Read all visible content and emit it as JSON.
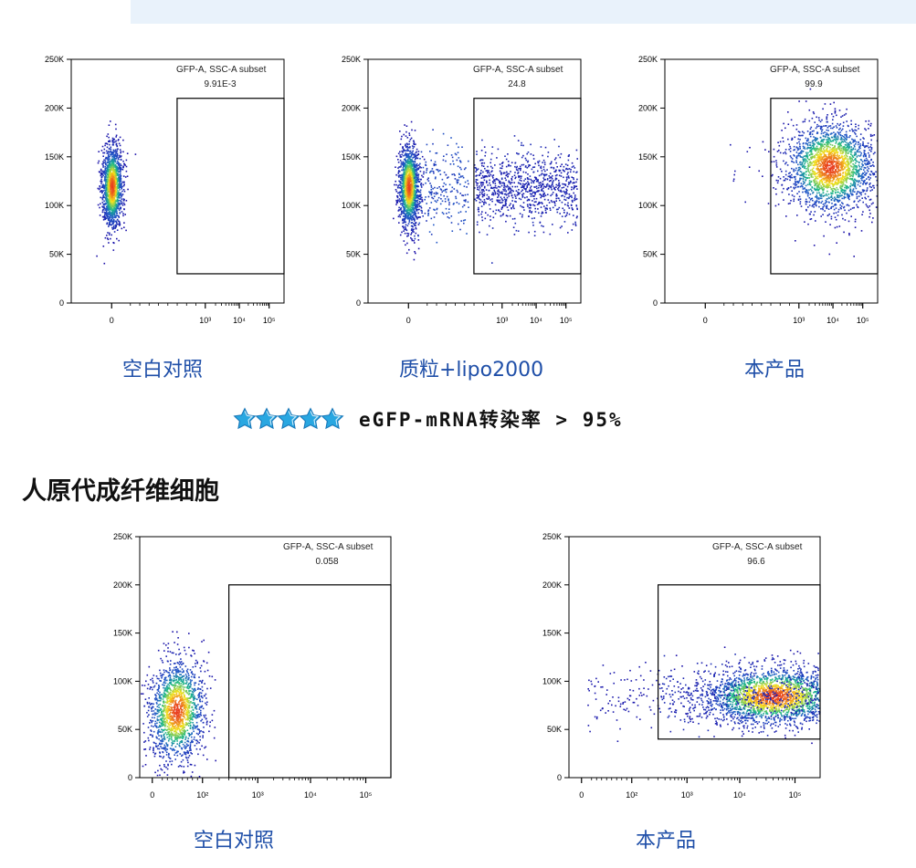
{
  "section_title": "人原代成纤维细胞",
  "rating": {
    "stars": 5,
    "icon": "star-icon",
    "star_color": "#29a7e1",
    "text": "eGFP-mRNA转染率 > 95%"
  },
  "colors": {
    "label_blue": "#1f4fa8",
    "banner": "#e9f2fb",
    "density_low": "#1a0ea8",
    "density_mid": "#19b88a",
    "density_high": "#f5e21a",
    "density_peak": "#e8391f"
  },
  "chart_data": [
    {
      "type": "scatter",
      "sample_label": "空白对照",
      "gate_name": "GFP-A, SSC-A subset",
      "gate_value": "9.91E-3",
      "x_axis": {
        "scale": "biexponential",
        "ticks": [
          "0",
          "10³",
          "10⁴",
          "10⁵"
        ]
      },
      "y_axis": {
        "ticks": [
          "0",
          "50K",
          "100K",
          "150K",
          "200K",
          "250K"
        ],
        "ylim": [
          0,
          250000
        ]
      },
      "gate": {
        "x_min": 500,
        "x_max": 262144,
        "y_min": 30000,
        "y_max": 210000
      },
      "population": {
        "center_x": 0,
        "center_y": 120000,
        "spread_y": 50000
      },
      "grid": false
    },
    {
      "type": "scatter",
      "sample_label": "质粒+lipo2000",
      "gate_name": "GFP-A, SSC-A subset",
      "gate_value": "24.8",
      "x_axis": {
        "scale": "biexponential",
        "ticks": [
          "0",
          "10³",
          "10⁴",
          "10⁵"
        ]
      },
      "y_axis": {
        "ticks": [
          "0",
          "50K",
          "100K",
          "150K",
          "200K",
          "250K"
        ],
        "ylim": [
          0,
          250000
        ]
      },
      "gate": {
        "x_min": 500,
        "x_max": 262144,
        "y_min": 30000,
        "y_max": 210000
      },
      "population": {
        "center_x": 0,
        "center_y": 120000,
        "spread_y": 50000
      },
      "grid": false
    },
    {
      "type": "scatter",
      "sample_label": "本产品",
      "gate_name": "GFP-A, SSC-A subset",
      "gate_value": "99.9",
      "x_axis": {
        "scale": "biexponential",
        "ticks": [
          "0",
          "10³",
          "10⁴",
          "10⁵"
        ]
      },
      "y_axis": {
        "ticks": [
          "0",
          "50K",
          "100K",
          "150K",
          "200K",
          "250K"
        ],
        "ylim": [
          0,
          250000
        ]
      },
      "gate": {
        "x_min": 500,
        "x_max": 262144,
        "y_min": 30000,
        "y_max": 210000
      },
      "population": {
        "center_x": 8000,
        "center_y": 140000,
        "spread_y": 55000
      },
      "grid": false
    },
    {
      "type": "scatter",
      "sample_label": "空白对照",
      "gate_name": "GFP-A, SSC-A subset",
      "gate_value": "0.058",
      "x_axis": {
        "scale": "biexponential",
        "ticks": [
          "0",
          "10²",
          "10³",
          "10⁴",
          "10⁵"
        ]
      },
      "y_axis": {
        "ticks": [
          "0",
          "50K",
          "100K",
          "150K",
          "200K",
          "250K"
        ],
        "ylim": [
          0,
          250000
        ]
      },
      "gate": {
        "x_min": 300,
        "x_max": 262144,
        "y_min": 0,
        "y_max": 200000
      },
      "population": {
        "center_x": 30,
        "center_y": 70000,
        "spread_y": 55000
      },
      "grid": false
    },
    {
      "type": "scatter",
      "sample_label": "本产品",
      "gate_name": "GFP-A, SSC-A subset",
      "gate_value": "96.6",
      "x_axis": {
        "scale": "biexponential",
        "ticks": [
          "0",
          "10²",
          "10³",
          "10⁴",
          "10⁵"
        ]
      },
      "y_axis": {
        "ticks": [
          "0",
          "50K",
          "100K",
          "150K",
          "200K",
          "250K"
        ],
        "ylim": [
          0,
          250000
        ]
      },
      "gate": {
        "x_min": 300,
        "x_max": 262144,
        "y_min": 40000,
        "y_max": 200000
      },
      "population": {
        "center_x": 40000,
        "center_y": 85000,
        "spread_y": 50000
      },
      "grid": false
    }
  ]
}
